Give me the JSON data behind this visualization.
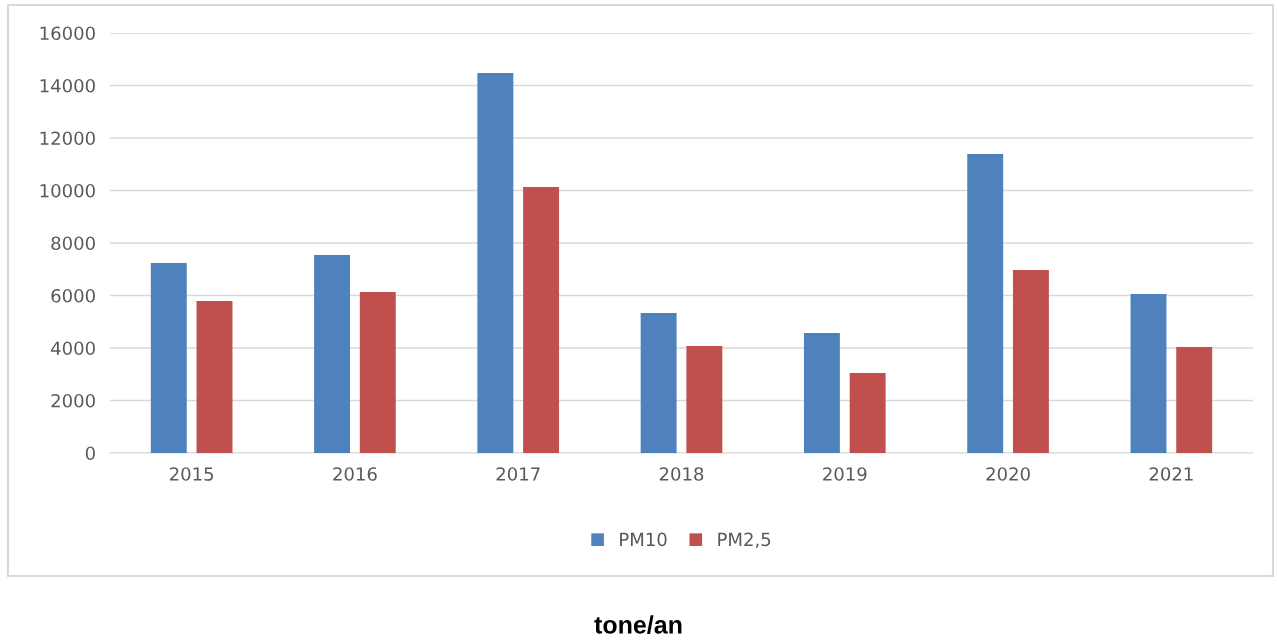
{
  "chart_data": {
    "type": "bar",
    "title": "tone/an",
    "categories": [
      "2015",
      "2016",
      "2017",
      "2018",
      "2019",
      "2020",
      "2021"
    ],
    "series": [
      {
        "name": "PM10",
        "color": "#4f81bd",
        "values": [
          7240,
          7540,
          14480,
          5330,
          4570,
          11390,
          6060
        ]
      },
      {
        "name": "PM2,5",
        "color": "#c0504d",
        "values": [
          5790,
          6130,
          10130,
          4080,
          3050,
          6970,
          4040
        ]
      }
    ],
    "ylim": [
      0,
      16000
    ],
    "yticks": [
      0,
      2000,
      4000,
      6000,
      8000,
      10000,
      12000,
      14000,
      16000
    ],
    "grid": "y",
    "legend": "bottom"
  }
}
